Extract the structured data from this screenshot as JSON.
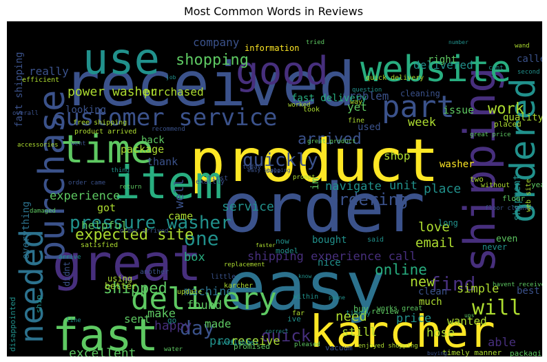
{
  "title": "Most Common Words in Reviews",
  "palette": [
    "#440154",
    "#472f7d",
    "#3b528b",
    "#2c728e",
    "#21918c",
    "#28ae80",
    "#5ec962",
    "#addc30",
    "#fde725"
  ],
  "words": [
    {
      "text": "product",
      "c": "#fde725"
    },
    {
      "text": "order",
      "c": "#3b528b"
    },
    {
      "text": "easy",
      "c": "#2c728e"
    },
    {
      "text": "received",
      "c": "#3b528b"
    },
    {
      "text": "karcher",
      "c": "#fde725"
    },
    {
      "text": "fast",
      "c": "#5ec962"
    },
    {
      "text": "great",
      "c": "#472f7d"
    },
    {
      "text": "item",
      "c": "#28ae80"
    },
    {
      "text": "shipping",
      "c": "#472f7d"
    },
    {
      "text": "website",
      "c": "#28ae80"
    },
    {
      "text": "good",
      "c": "#472f7d"
    },
    {
      "text": "purchase",
      "c": "#3b528b"
    },
    {
      "text": "ordered",
      "c": "#21918c"
    },
    {
      "text": "time",
      "c": "#5ec962"
    },
    {
      "text": "delivery",
      "c": "#5ec962"
    },
    {
      "text": "use",
      "c": "#21918c"
    },
    {
      "text": "customer service",
      "c": "#3b528b"
    },
    {
      "text": "needed",
      "c": "#2c728e"
    },
    {
      "text": "part",
      "c": "#3b528b"
    },
    {
      "text": "pressure washer",
      "c": "#21918c"
    },
    {
      "text": "quickly",
      "c": "#3b528b"
    },
    {
      "text": "shipped",
      "c": "#5ec962"
    },
    {
      "text": "will",
      "c": "#addc30"
    },
    {
      "text": "find",
      "c": "#472f7d"
    },
    {
      "text": "day",
      "c": "#3b528b"
    },
    {
      "text": "one",
      "c": "#21918c"
    },
    {
      "text": "quick",
      "c": "#472f7d"
    },
    {
      "text": "shopping",
      "c": "#5ec962"
    },
    {
      "text": "power washer",
      "c": "#addc30"
    },
    {
      "text": "purchased",
      "c": "#addc30"
    },
    {
      "text": "work",
      "c": "#addc30"
    },
    {
      "text": "expected site",
      "c": "#addc30"
    },
    {
      "text": "arrived",
      "c": "#3b528b"
    },
    {
      "text": "ordering",
      "c": "#3b528b"
    },
    {
      "text": "experience",
      "c": "#5ec962"
    },
    {
      "text": "navigate",
      "c": "#21918c"
    },
    {
      "text": "unit",
      "c": "#21918c"
    },
    {
      "text": "service",
      "c": "#21918c"
    },
    {
      "text": "place",
      "c": "#21918c"
    },
    {
      "text": "shipping experience call",
      "c": "#472f7d"
    },
    {
      "text": "online",
      "c": "#28ae80"
    },
    {
      "text": "new",
      "c": "#addc30"
    },
    {
      "text": "helpful",
      "c": "#5ec962"
    },
    {
      "text": "machine",
      "c": "#2c728e"
    },
    {
      "text": "found",
      "c": "#5ec962"
    },
    {
      "text": "email",
      "c": "#addc30"
    },
    {
      "text": "love",
      "c": "#addc30"
    },
    {
      "text": "box",
      "c": "#28ae80"
    },
    {
      "text": "happy",
      "c": "#472f7d"
    },
    {
      "text": "process",
      "c": "#21918c"
    },
    {
      "text": "excellent",
      "c": "#5ec962"
    },
    {
      "text": "made",
      "c": "#5ec962"
    },
    {
      "text": "make",
      "c": "#5ec962"
    },
    {
      "text": "sent",
      "c": "#5ec962"
    },
    {
      "text": "need",
      "c": "#addc30"
    },
    {
      "text": "price",
      "c": "#21918c"
    },
    {
      "text": "hose",
      "c": "#addc30"
    },
    {
      "text": "receive",
      "c": "#addc30"
    },
    {
      "text": "still",
      "c": "#addc30"
    },
    {
      "text": "able",
      "c": "#472f7d"
    },
    {
      "text": "simple",
      "c": "#addc30"
    },
    {
      "text": "wanted",
      "c": "#addc30"
    },
    {
      "text": "problem",
      "c": "#3b528b"
    },
    {
      "text": "delivered",
      "c": "#21918c"
    },
    {
      "text": "really",
      "c": "#3b528b"
    },
    {
      "text": "company",
      "c": "#3b528b"
    },
    {
      "text": "information",
      "c": "#fde725"
    },
    {
      "text": "fast delivery",
      "c": "#28ae80"
    },
    {
      "text": "yet",
      "c": "#5ec962"
    },
    {
      "text": "issue",
      "c": "#5ec962"
    },
    {
      "text": "week",
      "c": "#addc30"
    },
    {
      "text": "thank",
      "c": "#3b528b"
    },
    {
      "text": "package",
      "c": "#addc30"
    },
    {
      "text": "used",
      "c": "#3b528b"
    },
    {
      "text": "shop",
      "c": "#addc30"
    },
    {
      "text": "im",
      "c": "#5ec962"
    },
    {
      "text": "got",
      "c": "#addc30"
    },
    {
      "text": "came",
      "c": "#addc30"
    },
    {
      "text": "well",
      "c": "#3b528b"
    },
    {
      "text": "back",
      "c": "#5ec962"
    },
    {
      "text": "washer",
      "c": "#fde725"
    },
    {
      "text": "bought",
      "c": "#21918c"
    },
    {
      "text": "nice",
      "c": "#21918c"
    },
    {
      "text": "everything",
      "c": "#2c728e"
    },
    {
      "text": "quality",
      "c": "#addc30"
    },
    {
      "text": "shipment",
      "c": "#21918c"
    },
    {
      "text": "called",
      "c": "#3b528b"
    },
    {
      "text": "right",
      "c": "#5ec962"
    },
    {
      "text": "cleaning",
      "c": "#3b528b"
    },
    {
      "text": "fast shipping",
      "c": "#3b528b"
    },
    {
      "text": "free shipping",
      "c": "#addc30"
    },
    {
      "text": "efficient",
      "c": "#addc30"
    },
    {
      "text": "worked",
      "c": "#addc30"
    },
    {
      "text": "great price",
      "c": "#5ec962"
    },
    {
      "text": "quick delivery",
      "c": "#addc30"
    },
    {
      "text": "order came",
      "c": "#3b528b"
    },
    {
      "text": "order arrived",
      "c": "#3b528b"
    },
    {
      "text": "product arrived",
      "c": "#addc30"
    },
    {
      "text": "satisfied",
      "c": "#addc30"
    },
    {
      "text": "promised",
      "c": "#5ec962"
    },
    {
      "text": "vacuum",
      "c": "#3b528b"
    },
    {
      "text": "enjoyed shopping",
      "c": "#addc30"
    },
    {
      "text": "timely manner",
      "c": "#addc30"
    },
    {
      "text": "packaging",
      "c": "#5ec962"
    },
    {
      "text": "buy",
      "c": "#5ec962"
    },
    {
      "text": "works great",
      "c": "#5ec962"
    },
    {
      "text": "review",
      "c": "#5ec962"
    },
    {
      "text": "better",
      "c": "#addc30"
    },
    {
      "text": "using",
      "c": "#addc30"
    },
    {
      "text": "didnt",
      "c": "#3b528b"
    },
    {
      "text": "water",
      "c": "#5ec962"
    },
    {
      "text": "available",
      "c": "#21918c"
    },
    {
      "text": "pleased",
      "c": "#5ec962"
    },
    {
      "text": "disappointed",
      "c": "#21918c"
    },
    {
      "text": "floor cleaner",
      "c": "#3b528b"
    },
    {
      "text": "web site",
      "c": "#addc30"
    },
    {
      "text": "much",
      "c": "#addc30"
    },
    {
      "text": "clean",
      "c": "#3b528b"
    },
    {
      "text": "best",
      "c": "#3b528b"
    },
    {
      "text": "even",
      "c": "#5ec962"
    },
    {
      "text": "long",
      "c": "#21918c"
    },
    {
      "text": "never",
      "c": "#21918c"
    },
    {
      "text": "karcher",
      "c": "#addc30"
    },
    {
      "text": "tried",
      "c": "#5ec962"
    },
    {
      "text": "job",
      "c": "#21918c"
    },
    {
      "text": "way",
      "c": "#addc30"
    },
    {
      "text": "fine",
      "c": "#addc30"
    },
    {
      "text": "took",
      "c": "#addc30"
    },
    {
      "text": "placed",
      "c": "#addc30"
    },
    {
      "text": "second",
      "c": "#21918c"
    },
    {
      "text": "wand",
      "c": "#addc30"
    },
    {
      "text": "cant",
      "c": "#21918c"
    },
    {
      "text": "number",
      "c": "#21918c"
    },
    {
      "text": "question",
      "c": "#21918c"
    },
    {
      "text": "recommend",
      "c": "#3b528b"
    },
    {
      "text": "great product",
      "c": "#5ec962"
    },
    {
      "text": "looking",
      "c": "#3b528b"
    },
    {
      "text": "overall",
      "c": "#3b528b"
    },
    {
      "text": "accessories",
      "c": "#addc30"
    },
    {
      "text": "went",
      "c": "#3b528b"
    },
    {
      "text": "return",
      "c": "#5ec962"
    },
    {
      "text": "first",
      "c": "#3b528b"
    },
    {
      "text": "today",
      "c": "#3b528b"
    },
    {
      "text": "sale",
      "c": "#3b528b"
    },
    {
      "text": "easy shopping",
      "c": "#3b528b"
    },
    {
      "text": "prompt",
      "c": "#addc30"
    },
    {
      "text": "two",
      "c": "#addc30"
    },
    {
      "text": "without",
      "c": "#addc30"
    },
    {
      "text": "year",
      "c": "#5ec962"
    },
    {
      "text": "floor",
      "c": "#5ec962"
    },
    {
      "text": "damaged",
      "c": "#5ec962"
    },
    {
      "text": "thing",
      "c": "#21918c"
    },
    {
      "text": "exactly",
      "c": "#3b528b"
    },
    {
      "text": "now",
      "c": "#21918c"
    },
    {
      "text": "model",
      "c": "#21918c"
    },
    {
      "text": "replacement",
      "c": "#addc30"
    },
    {
      "text": "little",
      "c": "#3b528b"
    },
    {
      "text": "said",
      "c": "#21918c"
    },
    {
      "text": "another",
      "c": "#3b528b"
    },
    {
      "text": "update",
      "c": "#addc30"
    },
    {
      "text": "far",
      "c": "#addc30"
    },
    {
      "text": "ive",
      "c": "#21918c"
    },
    {
      "text": "know",
      "c": "#21918c"
    },
    {
      "text": "within",
      "c": "#21918c"
    },
    {
      "text": "phone",
      "c": "#21918c"
    },
    {
      "text": "faster",
      "c": "#addc30"
    },
    {
      "text": "timely",
      "c": "#21918c"
    },
    {
      "text": "ups",
      "c": "#5ec962"
    },
    {
      "text": "arrive",
      "c": "#21918c"
    },
    {
      "text": "havent received",
      "c": "#5ec962"
    },
    {
      "text": "ship",
      "c": "#21918c"
    },
    {
      "text": "line",
      "c": "#21918c"
    },
    {
      "text": "go",
      "c": "#21918c"
    },
    {
      "text": "correct",
      "c": "#21918c"
    },
    {
      "text": "buying",
      "c": "#3b528b"
    }
  ]
}
